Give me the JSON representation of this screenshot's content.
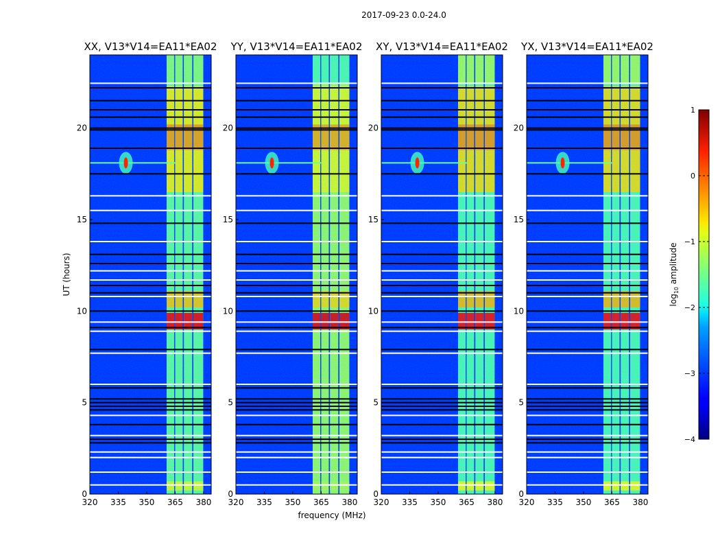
{
  "chart_data": {
    "type": "heatmap",
    "title": "2017-09-23 0.0-24.0",
    "xlabel": "frequency (MHz)",
    "ylabel": "UT (hours)",
    "xlim": [
      320,
      384
    ],
    "ylim": [
      0,
      24
    ],
    "xticks": [
      320,
      335,
      350,
      365,
      380
    ],
    "yticks": [
      0,
      5,
      10,
      15,
      20
    ],
    "colorbar": {
      "label": "log10 amplitude",
      "label_main": "log",
      "label_sub": "10",
      "label_rest": " amplitude",
      "range": [
        -4,
        1
      ],
      "ticks": [
        1,
        0,
        -1,
        -2,
        -3,
        -4
      ],
      "tick_labels": [
        "1",
        "0",
        "−1",
        "−2",
        "−3",
        "−4"
      ],
      "colormap": "jet"
    },
    "background_level": -3.2,
    "panels": [
      {
        "title": "XX, V13*V14=EA11*EA02",
        "band_level": -1.6,
        "bright_scale": 1.0
      },
      {
        "title": "YY, V13*V14=EA11*EA02",
        "band_level": -1.3,
        "bright_scale": 1.2
      },
      {
        "title": "XY, V13*V14=EA11*EA02",
        "band_level": -1.7,
        "bright_scale": 0.9
      },
      {
        "title": "YX, V13*V14=EA11*EA02",
        "band_level": -1.7,
        "bright_scale": 0.9
      }
    ],
    "rfi_channels_mhz": [
      [
        360.5,
        364.5
      ],
      [
        365,
        369
      ],
      [
        369.6,
        374
      ],
      [
        374.6,
        379.8
      ]
    ],
    "bright_periods": [
      {
        "t": [
          22.4,
          24
        ],
        "level": -1.4
      },
      {
        "t": [
          16.5,
          22.3
        ],
        "level": -0.8
      },
      {
        "t": [
          18.8,
          20.2
        ],
        "level": -0.4
      },
      {
        "t": [
          10.2,
          11.1
        ],
        "level": -0.6
      },
      {
        "t": [
          9.0,
          9.9
        ],
        "level": 0.4
      },
      {
        "t": [
          0.2,
          0.7
        ],
        "level": -1.0
      }
    ],
    "point_source": {
      "freq_mhz": 339,
      "ut_hours": 18.1,
      "level": 0.2
    },
    "flagged_white_hours": [
      22.45,
      16.3,
      15.5,
      13.8,
      12.2,
      11.7,
      10.8,
      9.4,
      8.9,
      7.7,
      6.0,
      4.3,
      3.2,
      2.3,
      2.0,
      1.2,
      0.5
    ],
    "flagged_black_hours": [
      22.2,
      21.5,
      21.0,
      20.6,
      20.0,
      19.9,
      18.9,
      17.5,
      14.8,
      13.1,
      12.6,
      11.4,
      11.0,
      10.0,
      9.1,
      7.9,
      5.8,
      5.2,
      5.0,
      4.8,
      4.6,
      3.8,
      3.0,
      2.8
    ]
  }
}
